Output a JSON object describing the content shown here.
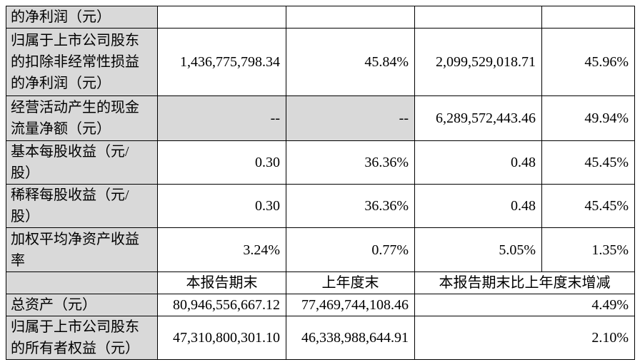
{
  "table": {
    "rows": [
      [
        "的净利润（元）"
      ],
      [
        "归属于上市公司股东的扣除非经常性损益的净利润（元）",
        "1,436,775,798.34",
        "45.84%",
        "2,099,529,018.71",
        "45.96%"
      ],
      [
        "经营活动产生的现金流量净额（元）",
        "--",
        "--",
        "6,289,572,443.46",
        "49.94%"
      ],
      [
        "基本每股收益（元/股）",
        "0.30",
        "36.36%",
        "0.48",
        "45.45%"
      ],
      [
        "稀释每股收益（元/股）",
        "0.30",
        "36.36%",
        "0.48",
        "45.45%"
      ],
      [
        "加权平均净资产收益率",
        "3.24%",
        "0.77%",
        "5.05%",
        "1.35%"
      ]
    ],
    "balance_header": [
      "本报告期末",
      "上年度末",
      "本报告期末比上年度末增减"
    ],
    "balance_rows": [
      [
        "总资产（元）",
        "80,946,556,667.12",
        "77,469,744,108.46",
        "4.49%"
      ],
      [
        "归属于上市公司股东的所有者权益（元）",
        "47,310,800,301.10",
        "46,338,988,644.91",
        "2.10%"
      ]
    ]
  }
}
